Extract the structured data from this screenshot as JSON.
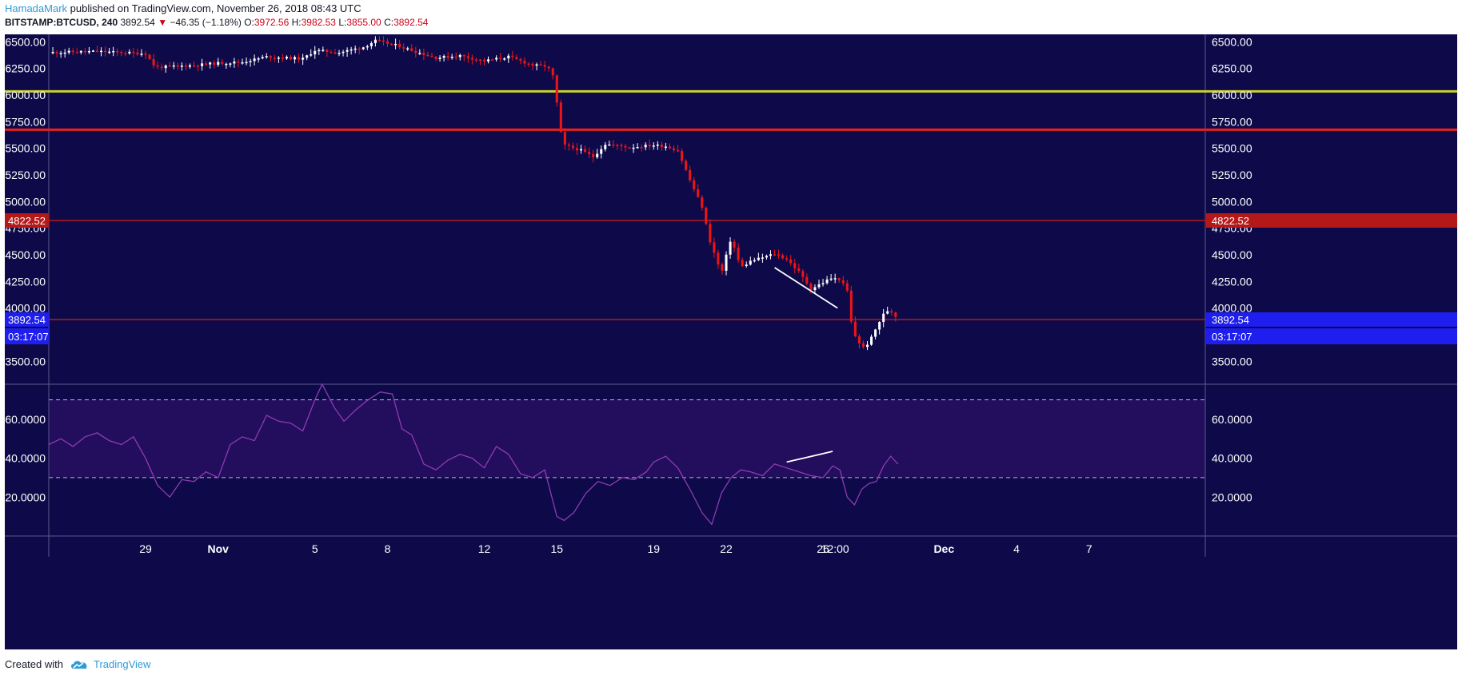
{
  "header": {
    "author": "HamadaMark",
    "published": "published on TradingView.com, November 26, 2018 08:43 UTC",
    "symbol": "BITSTAMP:BTCUSD, 240",
    "last": "3892.54",
    "change_arrow": "▼",
    "change": "−46.35 (−1.18%)",
    "o_label": "O:",
    "o": "3972.56",
    "h_label": "H:",
    "h": "3982.53",
    "l_label": "L:",
    "l": "3855.00",
    "c_label": "C:",
    "c": "3892.54"
  },
  "footer": {
    "created": "Created with",
    "brand": "TradingView",
    "logo_icon": "tradingview-cloud-icon"
  },
  "colors": {
    "background": "#0e0a4a",
    "rsi_band": "#230e5e",
    "up_candle": "#ffffff",
    "down_candle": "#ee1515",
    "support_yellow": "#c8d12a",
    "resistance_red": "#ee1c1c",
    "level_darkred": "#b51818",
    "current_price_tag": "#1e1eee",
    "rsi_line": "#8e3bb0"
  },
  "chart_data": [
    {
      "type": "candlestick",
      "symbol": "BITSTAMP:BTCUSD",
      "interval": "240",
      "y_ticks": [
        3500,
        3750,
        4000,
        4250,
        4500,
        4750,
        5000,
        5250,
        5500,
        5750,
        6000,
        6250,
        6500
      ],
      "y_tick_labels": [
        "3500.00",
        "3750.00",
        "4000.00",
        "4250.00",
        "4500.00",
        "4750.00",
        "5000.00",
        "5250.00",
        "5500.00",
        "5750.00",
        "6000.00",
        "6250.00",
        "6500.00"
      ],
      "ylim": [
        3285,
        6570
      ],
      "x_ticks": [
        "29",
        "Nov",
        "5",
        "8",
        "12",
        "15",
        "19",
        "22",
        "26",
        "12:00",
        "Dec",
        "4",
        "7"
      ],
      "x_tick_days": [
        29,
        32,
        36,
        39,
        43,
        46,
        50,
        53,
        57,
        57.5,
        62,
        65,
        68
      ],
      "bold_ticks": [
        "Nov",
        "Dec"
      ],
      "xlim": [
        25,
        72.8
      ],
      "horizontal_levels": [
        {
          "price": 6035,
          "color": "yellow"
        },
        {
          "price": 5675,
          "color": "red"
        },
        {
          "price": 4822.52,
          "color": "darkred",
          "label": "4822.52"
        },
        {
          "price": 3892.54,
          "color": "darkred",
          "label": "3892.54",
          "sublabel": "03:17:07"
        }
      ],
      "trendline": {
        "points": [
          [
            55.0,
            4380
          ],
          [
            57.6,
            4000
          ]
        ]
      },
      "price_path": [
        [
          25.0,
          6400
        ],
        [
          27.0,
          6410
        ],
        [
          29.0,
          6390
        ],
        [
          29.4,
          6260
        ],
        [
          31.0,
          6280
        ],
        [
          32.0,
          6300
        ],
        [
          33.0,
          6310
        ],
        [
          34.0,
          6360
        ],
        [
          35.5,
          6340
        ],
        [
          36.0,
          6420
        ],
        [
          37.0,
          6400
        ],
        [
          38.0,
          6450
        ],
        [
          38.5,
          6510
        ],
        [
          39.5,
          6460
        ],
        [
          40.0,
          6420
        ],
        [
          41.0,
          6350
        ],
        [
          42.0,
          6370
        ],
        [
          43.0,
          6320
        ],
        [
          44.0,
          6360
        ],
        [
          45.0,
          6280
        ],
        [
          45.6,
          6270
        ],
        [
          45.9,
          6150
        ],
        [
          46.1,
          5700
        ],
        [
          46.3,
          5530
        ],
        [
          47.0,
          5480
        ],
        [
          47.5,
          5420
        ],
        [
          48.0,
          5540
        ],
        [
          49.0,
          5510
        ],
        [
          50.0,
          5530
        ],
        [
          50.5,
          5520
        ],
        [
          51.0,
          5480
        ],
        [
          51.5,
          5200
        ],
        [
          52.0,
          4950
        ],
        [
          52.3,
          4650
        ],
        [
          52.8,
          4320
        ],
        [
          53.2,
          4660
        ],
        [
          53.6,
          4380
        ],
        [
          54.0,
          4440
        ],
        [
          55.0,
          4510
        ],
        [
          55.5,
          4460
        ],
        [
          56.0,
          4340
        ],
        [
          56.5,
          4180
        ],
        [
          57.0,
          4240
        ],
        [
          57.3,
          4280
        ],
        [
          57.7,
          4270
        ],
        [
          58.0,
          4160
        ],
        [
          58.2,
          3810
        ],
        [
          58.4,
          3700
        ],
        [
          58.7,
          3620
        ],
        [
          59.0,
          3720
        ],
        [
          59.3,
          3860
        ],
        [
          59.6,
          3980
        ],
        [
          59.9,
          3960
        ],
        [
          60.1,
          3892.54
        ]
      ],
      "current_price": 3892.54,
      "countdown": "03:17:07"
    },
    {
      "type": "line",
      "indicator": "RSI",
      "y_ticks": [
        20,
        40,
        60
      ],
      "y_tick_labels": [
        "20.0000",
        "40.0000",
        "60.0000"
      ],
      "ylim": [
        0,
        78
      ],
      "band": [
        30,
        70
      ],
      "trendline": {
        "points": [
          [
            55.5,
            38
          ],
          [
            57.4,
            43.5
          ]
        ]
      },
      "x": [
        25.0,
        25.5,
        26.0,
        26.5,
        27.0,
        27.5,
        28.0,
        28.5,
        29.0,
        29.5,
        30.0,
        30.5,
        31.0,
        31.5,
        32.0,
        32.5,
        33.0,
        33.5,
        34.0,
        34.5,
        35.0,
        35.5,
        36.0,
        36.3,
        36.8,
        37.2,
        37.7,
        38.2,
        38.7,
        39.2,
        39.6,
        40.0,
        40.5,
        41.0,
        41.5,
        42.0,
        42.5,
        43.0,
        43.5,
        44.0,
        44.5,
        45.0,
        45.5,
        46.0,
        46.3,
        46.7,
        47.2,
        47.7,
        48.2,
        48.7,
        49.2,
        49.7,
        50.0,
        50.5,
        51.0,
        51.5,
        52.0,
        52.4,
        52.8,
        53.2,
        53.6,
        54.0,
        54.5,
        55.0,
        55.5,
        56.0,
        56.5,
        57.0,
        57.4,
        57.7,
        58.0,
        58.3,
        58.6,
        58.9,
        59.2,
        59.5,
        59.8,
        60.1
      ],
      "values": [
        47,
        50,
        46,
        51,
        53,
        49,
        47,
        51,
        40,
        26,
        20,
        29,
        28,
        33,
        30,
        47,
        51,
        49,
        62,
        59,
        58,
        54,
        70,
        78,
        66,
        59,
        65,
        70,
        74,
        73,
        55,
        52,
        37,
        34,
        39,
        42,
        40,
        35,
        46,
        42,
        32,
        30,
        34,
        10,
        8,
        12,
        22,
        28,
        26,
        30,
        29,
        33,
        38,
        41,
        35,
        24,
        12,
        6,
        22,
        30,
        34,
        33,
        31,
        37,
        35,
        33,
        31,
        30,
        36,
        34,
        20,
        16,
        24,
        27,
        28,
        36,
        41,
        37
      ]
    }
  ]
}
